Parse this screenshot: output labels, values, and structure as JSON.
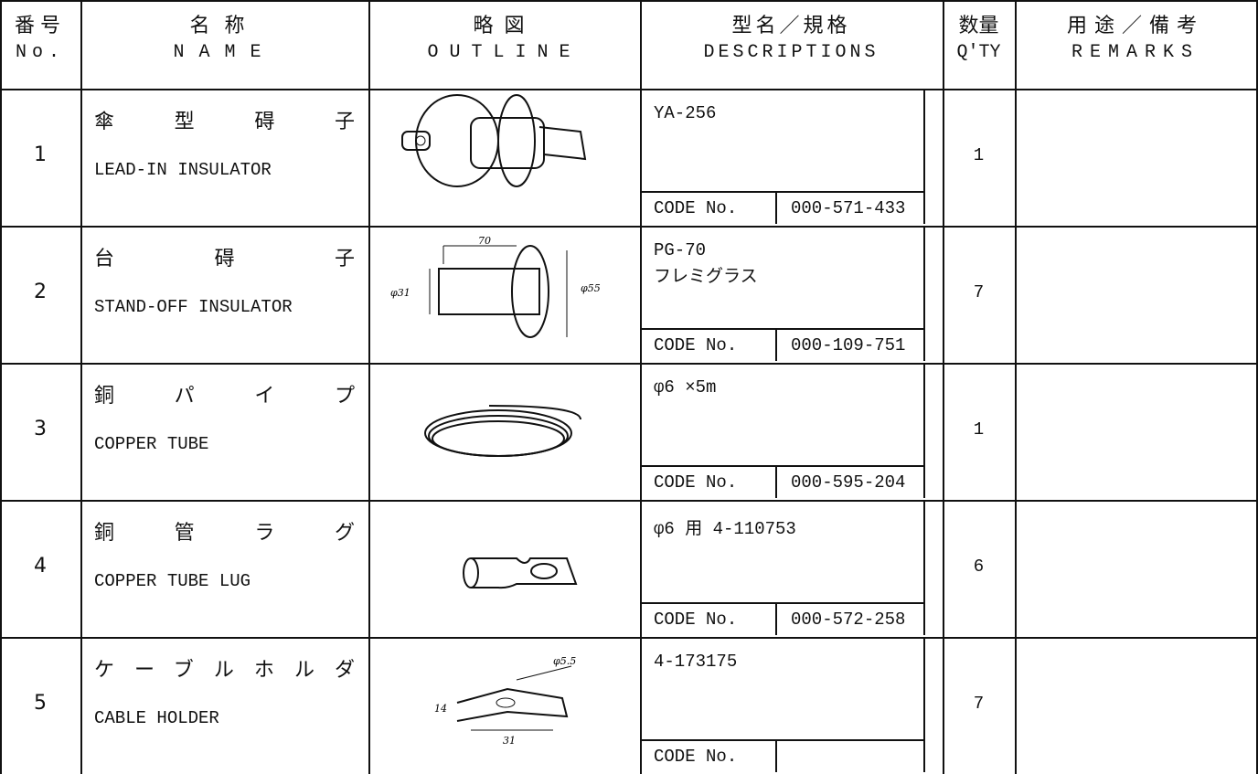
{
  "header": {
    "no_ja": "番号",
    "no_en": "No.",
    "name_ja": "名称",
    "name_en": "NAME",
    "outline_ja": "略図",
    "outline_en": "OUTLINE",
    "desc_ja": "型名／規格",
    "desc_en": "DESCRIPTIONS",
    "qty_ja": "数量",
    "qty_en": "Q'TY",
    "remarks_ja": "用途／備考",
    "remarks_en": "REMARKS"
  },
  "rows": [
    {
      "no": "1",
      "name_ja": "傘型碍子",
      "name_en": "LEAD-IN INSULATOR",
      "description": [
        "YA-256"
      ],
      "code_label": "CODE No.",
      "code": "000-571-433",
      "qty": 1
    },
    {
      "no": "2",
      "name_ja": "台碍子",
      "name_en": "STAND-OFF INSULATOR",
      "description": [
        "PG-70",
        "フレミグラス"
      ],
      "code_label": "CODE No.",
      "code": "000-109-751",
      "qty": 7,
      "dimensions": [
        "70",
        "φ31",
        "φ55"
      ]
    },
    {
      "no": "3",
      "name_ja": "銅パイプ",
      "name_en": "COPPER TUBE",
      "description": [
        "φ6 ×5m"
      ],
      "code_label": "CODE No.",
      "code": "000-595-204",
      "qty": 1
    },
    {
      "no": "4",
      "name_ja": "銅管ラグ",
      "name_en": "COPPER TUBE LUG",
      "description": [
        "φ6 用 4-110753"
      ],
      "code_label": "CODE No.",
      "code": "000-572-258",
      "qty": 6
    },
    {
      "no": "5",
      "name_ja": "ケーブルホルダ",
      "name_en": "CABLE HOLDER",
      "description": [
        "4-173175"
      ],
      "code_label": "CODE No.",
      "qty": 7,
      "dimensions": [
        "φ5.5",
        "14",
        "31"
      ]
    }
  ]
}
